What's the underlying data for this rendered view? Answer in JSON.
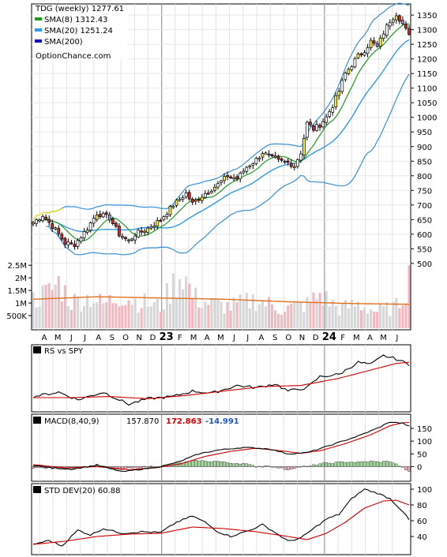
{
  "chart_data": [
    {
      "type": "candlestick",
      "panel": "price",
      "title": "TDG (weekly) 1277.61",
      "legend": [
        {
          "name": "SMA(8) 1312.43",
          "color": "#1f9a1f"
        },
        {
          "name": "SMA(20) 1251.24",
          "color": "#3399e6"
        },
        {
          "name": "SMA(200)",
          "color": "#1010c0"
        }
      ],
      "watermark": "OptionChance.com",
      "ylim": [
        470,
        1380
      ],
      "y_ticks": [
        500,
        550,
        600,
        650,
        700,
        750,
        800,
        850,
        900,
        950,
        1000,
        1050,
        1100,
        1150,
        1200,
        1250,
        1300,
        1350
      ],
      "x_labels": [
        "A",
        "M",
        "J",
        "J",
        "A",
        "S",
        "O",
        "N",
        "D",
        "23",
        "F",
        "M",
        "A",
        "M",
        "J",
        "J",
        "A",
        "S",
        "O",
        "N",
        "D",
        "24",
        "F",
        "M",
        "A",
        "M",
        "J"
      ],
      "x_label_bold": [
        "23",
        "24"
      ],
      "close_anchors": [
        [
          0,
          640
        ],
        [
          3,
          665
        ],
        [
          7,
          615
        ],
        [
          10,
          570
        ],
        [
          13,
          565
        ],
        [
          17,
          620
        ],
        [
          20,
          672
        ],
        [
          24,
          655
        ],
        [
          27,
          600
        ],
        [
          30,
          575
        ],
        [
          32,
          600
        ],
        [
          36,
          620
        ],
        [
          40,
          650
        ],
        [
          44,
          700
        ],
        [
          48,
          740
        ],
        [
          50,
          705
        ],
        [
          54,
          740
        ],
        [
          58,
          770
        ],
        [
          61,
          800
        ],
        [
          64,
          790
        ],
        [
          67,
          830
        ],
        [
          70,
          855
        ],
        [
          72,
          880
        ],
        [
          75,
          860
        ],
        [
          77,
          850
        ],
        [
          80,
          845
        ],
        [
          82,
          835
        ],
        [
          84,
          880
        ],
        [
          86,
          980
        ],
        [
          88,
          960
        ],
        [
          90,
          975
        ],
        [
          92,
          1000
        ],
        [
          94,
          1040
        ],
        [
          96,
          1090
        ],
        [
          98,
          1150
        ],
        [
          100,
          1180
        ],
        [
          102,
          1210
        ],
        [
          104,
          1230
        ],
        [
          106,
          1260
        ],
        [
          108,
          1240
        ],
        [
          110,
          1290
        ],
        [
          112,
          1330
        ],
        [
          114,
          1355
        ],
        [
          116,
          1320
        ],
        [
          118,
          1278
        ]
      ],
      "sma8_last": 1312.43,
      "sma20_last": 1251.24
    },
    {
      "type": "bar",
      "panel": "volume",
      "y_ticks": [
        "2.5M",
        "2M",
        "1.5M",
        "1M",
        "500K"
      ],
      "y_tick_values": [
        2500000,
        2000000,
        1500000,
        1000000,
        500000
      ],
      "ylim": [
        0,
        2600000
      ],
      "volume_anchors": [
        [
          0,
          1200000
        ],
        [
          5,
          1500000
        ],
        [
          8,
          1900000
        ],
        [
          12,
          1100000
        ],
        [
          18,
          1300000
        ],
        [
          22,
          1000000
        ],
        [
          28,
          1400000
        ],
        [
          32,
          1150000
        ],
        [
          40,
          900000
        ],
        [
          44,
          1800000
        ],
        [
          47,
          2400000
        ],
        [
          50,
          1300000
        ],
        [
          56,
          1000000
        ],
        [
          62,
          900000
        ],
        [
          70,
          1200000
        ],
        [
          78,
          800000
        ],
        [
          86,
          1000000
        ],
        [
          90,
          1400000
        ],
        [
          96,
          800000
        ],
        [
          102,
          1000000
        ],
        [
          108,
          700000
        ],
        [
          114,
          900000
        ],
        [
          116,
          1400000
        ],
        [
          118,
          2100000
        ]
      ],
      "avg_line": [
        [
          0,
          1150000
        ],
        [
          20,
          1250000
        ],
        [
          40,
          1200000
        ],
        [
          60,
          1150000
        ],
        [
          80,
          1050000
        ],
        [
          100,
          980000
        ],
        [
          118,
          950000
        ]
      ]
    },
    {
      "type": "line",
      "panel": "rs",
      "title": "RS vs SPY",
      "series": [
        {
          "name": "RS vs SPY",
          "color": "#000000",
          "anchors": [
            [
              0,
              0.22
            ],
            [
              8,
              0.3
            ],
            [
              14,
              0.16
            ],
            [
              22,
              0.3
            ],
            [
              30,
              0.08
            ],
            [
              36,
              0.18
            ],
            [
              44,
              0.22
            ],
            [
              50,
              0.32
            ],
            [
              56,
              0.28
            ],
            [
              64,
              0.42
            ],
            [
              70,
              0.38
            ],
            [
              76,
              0.45
            ],
            [
              80,
              0.32
            ],
            [
              86,
              0.38
            ],
            [
              90,
              0.58
            ],
            [
              96,
              0.62
            ],
            [
              102,
              0.84
            ],
            [
              106,
              0.8
            ],
            [
              110,
              0.96
            ],
            [
              114,
              0.9
            ],
            [
              118,
              0.8
            ]
          ]
        },
        {
          "name": "RS MA",
          "color": "#cc0000",
          "anchors": [
            [
              0,
              0.2
            ],
            [
              12,
              0.2
            ],
            [
              24,
              0.22
            ],
            [
              36,
              0.18
            ],
            [
              48,
              0.24
            ],
            [
              60,
              0.32
            ],
            [
              72,
              0.4
            ],
            [
              84,
              0.42
            ],
            [
              96,
              0.55
            ],
            [
              106,
              0.7
            ],
            [
              114,
              0.82
            ],
            [
              118,
              0.84
            ]
          ]
        }
      ]
    },
    {
      "type": "macd",
      "panel": "macd",
      "title": "MACD(8,40,9)",
      "values": [
        {
          "text": "157.870",
          "color": "#000000"
        },
        {
          "text": "172.863",
          "color": "#dd0000"
        },
        {
          "text": "-14.991",
          "color": "#2255cc"
        }
      ],
      "ylim": [
        -45,
        190
      ],
      "y_ticks": [
        0,
        50,
        100,
        150
      ],
      "macd_anchors": [
        [
          0,
          5
        ],
        [
          6,
          -5
        ],
        [
          12,
          -10
        ],
        [
          20,
          5
        ],
        [
          28,
          -20
        ],
        [
          34,
          -10
        ],
        [
          40,
          0
        ],
        [
          46,
          20
        ],
        [
          52,
          50
        ],
        [
          58,
          65
        ],
        [
          66,
          75
        ],
        [
          74,
          70
        ],
        [
          80,
          50
        ],
        [
          86,
          55
        ],
        [
          90,
          70
        ],
        [
          96,
          95
        ],
        [
          102,
          120
        ],
        [
          108,
          150
        ],
        [
          112,
          175
        ],
        [
          116,
          170
        ],
        [
          118,
          158
        ]
      ],
      "signal_anchors": [
        [
          0,
          8
        ],
        [
          10,
          -5
        ],
        [
          20,
          0
        ],
        [
          30,
          -12
        ],
        [
          38,
          -5
        ],
        [
          46,
          10
        ],
        [
          54,
          40
        ],
        [
          62,
          60
        ],
        [
          70,
          72
        ],
        [
          78,
          62
        ],
        [
          84,
          52
        ],
        [
          90,
          62
        ],
        [
          98,
          90
        ],
        [
          106,
          125
        ],
        [
          112,
          160
        ],
        [
          116,
          172
        ],
        [
          118,
          173
        ]
      ]
    },
    {
      "type": "line",
      "panel": "std",
      "title": "STD DEV(20) 60.88",
      "ylim": [
        20,
        105
      ],
      "y_ticks": [
        40,
        60,
        80,
        100
      ],
      "series": [
        {
          "name": "STD DEV",
          "color": "#000000",
          "anchors": [
            [
              0,
              30
            ],
            [
              5,
              35
            ],
            [
              9,
              28
            ],
            [
              14,
              48
            ],
            [
              18,
              42
            ],
            [
              22,
              50
            ],
            [
              28,
              44
            ],
            [
              34,
              46
            ],
            [
              40,
              45
            ],
            [
              45,
              58
            ],
            [
              50,
              66
            ],
            [
              54,
              58
            ],
            [
              58,
              46
            ],
            [
              62,
              40
            ],
            [
              68,
              48
            ],
            [
              72,
              55
            ],
            [
              76,
              45
            ],
            [
              80,
              34
            ],
            [
              84,
              38
            ],
            [
              88,
              50
            ],
            [
              92,
              62
            ],
            [
              96,
              68
            ],
            [
              100,
              88
            ],
            [
              104,
              100
            ],
            [
              108,
              95
            ],
            [
              112,
              88
            ],
            [
              116,
              72
            ],
            [
              118,
              61
            ]
          ]
        },
        {
          "name": "STD MA",
          "color": "#cc0000",
          "anchors": [
            [
              0,
              30
            ],
            [
              10,
              34
            ],
            [
              20,
              40
            ],
            [
              30,
              43
            ],
            [
              40,
              44
            ],
            [
              50,
              52
            ],
            [
              60,
              50
            ],
            [
              70,
              46
            ],
            [
              80,
              40
            ],
            [
              86,
              36
            ],
            [
              92,
              44
            ],
            [
              98,
              58
            ],
            [
              104,
              76
            ],
            [
              110,
              85
            ],
            [
              114,
              86
            ],
            [
              118,
              80
            ]
          ]
        }
      ]
    }
  ]
}
